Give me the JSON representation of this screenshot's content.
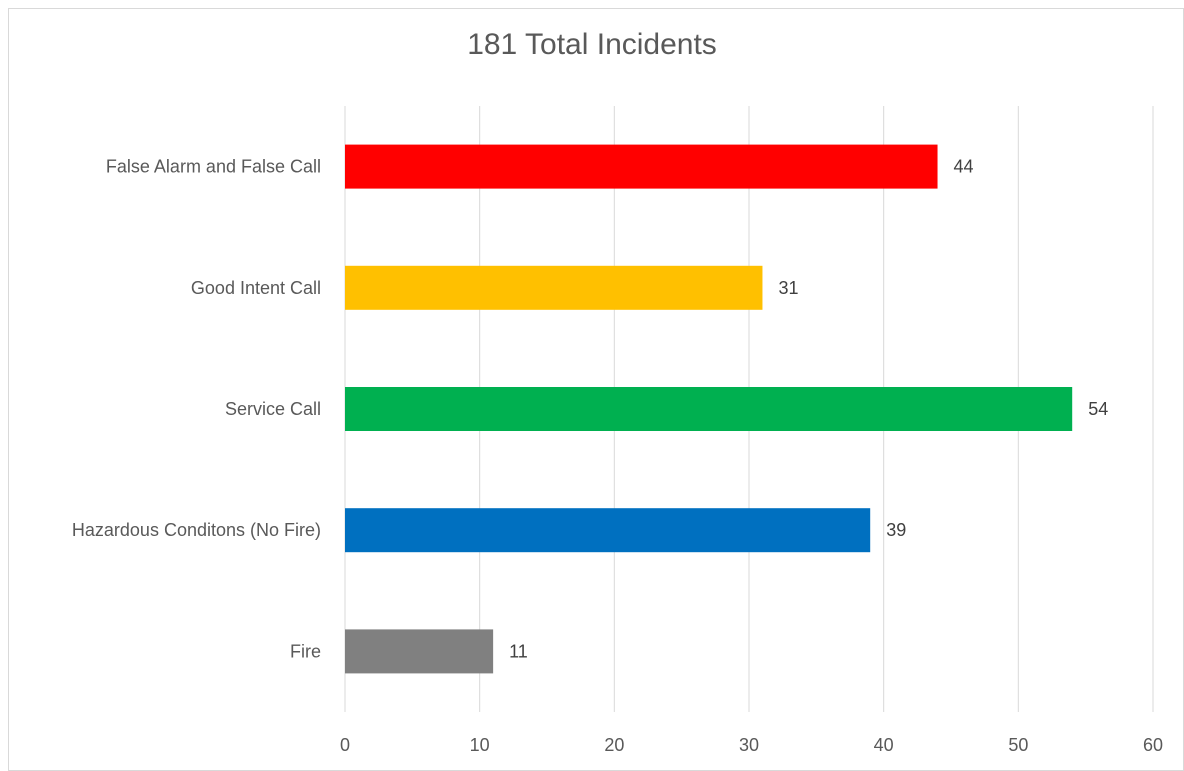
{
  "chart_data": {
    "type": "bar",
    "orientation": "horizontal",
    "title": "181 Total Incidents",
    "xlabel": "",
    "ylabel": "",
    "categories": [
      "False Alarm and False Call",
      "Good Intent Call",
      "Service Call",
      "Hazardous Conditons (No Fire)",
      "Fire"
    ],
    "values": [
      44,
      31,
      54,
      39,
      11
    ],
    "colors": [
      "#ff0000",
      "#ffc000",
      "#00b050",
      "#0070c0",
      "#808080"
    ],
    "xlim": [
      0,
      60
    ],
    "xticks": [
      0,
      10,
      20,
      30,
      40,
      50,
      60
    ],
    "data_labels": true,
    "grid": "vertical",
    "legend": "none"
  }
}
